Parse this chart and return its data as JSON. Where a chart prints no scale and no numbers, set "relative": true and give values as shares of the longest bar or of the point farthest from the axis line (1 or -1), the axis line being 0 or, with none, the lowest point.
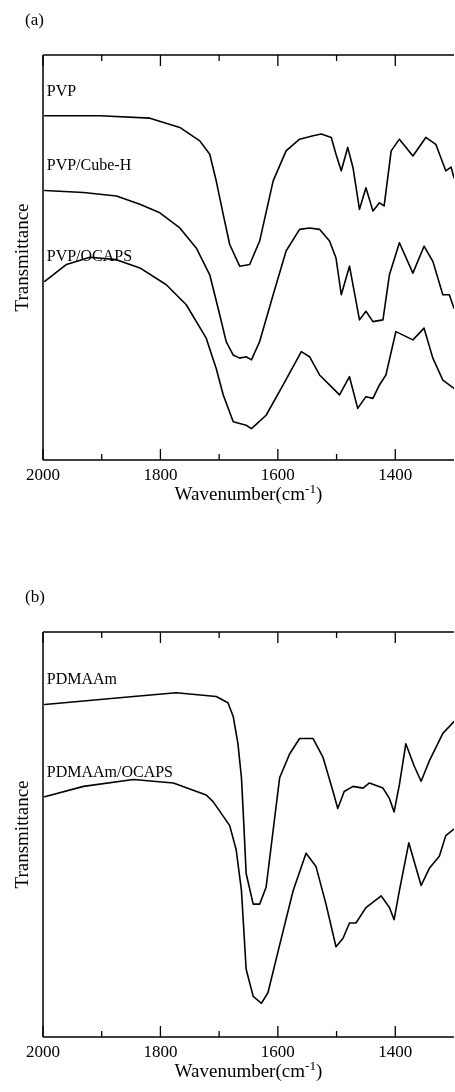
{
  "chart_data": [
    {
      "type": "line",
      "title": "(a)",
      "xlabel": "Wavenumber(cm$^{-1}$)",
      "ylabel": "Transmittance",
      "relative": true,
      "xlim": [
        2000,
        1300
      ],
      "xticks": [
        2000,
        {
          "value": 1900,
          "label": null
        },
        1800,
        {
          "value": 1700,
          "label": null
        },
        1600,
        {
          "value": 1500,
          "label": null
        },
        1400
      ],
      "series": [
        {
          "name": "PVP",
          "color": "#000000",
          "x": [
            1997,
            1903,
            1818,
            1767,
            1733,
            1716,
            1705,
            1693,
            1682,
            1665,
            1648,
            1631,
            1608,
            1586,
            1563,
            1540,
            1526,
            1509,
            1501,
            1492,
            1481,
            1472,
            1461,
            1450,
            1438,
            1427,
            1419,
            1407,
            1393,
            1370,
            1348,
            1331,
            1314,
            1305,
            1300
          ],
          "values": [
            1.0,
            1.0,
            0.993,
            0.966,
            0.927,
            0.888,
            0.811,
            0.713,
            0.626,
            0.563,
            0.568,
            0.636,
            0.811,
            0.898,
            0.932,
            0.942,
            0.947,
            0.937,
            0.888,
            0.84,
            0.908,
            0.849,
            0.728,
            0.791,
            0.723,
            0.747,
            0.738,
            0.898,
            0.932,
            0.883,
            0.937,
            0.917,
            0.84,
            0.851,
            0.82
          ]
        },
        {
          "name": "PVP/Cube-H",
          "color": "#000000",
          "x": [
            1997,
            1931,
            1875,
            1835,
            1801,
            1767,
            1739,
            1716,
            1699,
            1688,
            1676,
            1665,
            1654,
            1645,
            1631,
            1608,
            1586,
            1563,
            1546,
            1529,
            1512,
            1501,
            1492,
            1478,
            1470,
            1461,
            1450,
            1438,
            1421,
            1410,
            1393,
            1370,
            1351,
            1336,
            1319,
            1308,
            1300
          ],
          "values": [
            0.783,
            0.777,
            0.767,
            0.743,
            0.718,
            0.674,
            0.616,
            0.538,
            0.422,
            0.344,
            0.305,
            0.296,
            0.3,
            0.291,
            0.344,
            0.48,
            0.607,
            0.67,
            0.674,
            0.67,
            0.636,
            0.587,
            0.48,
            0.563,
            0.49,
            0.407,
            0.432,
            0.402,
            0.407,
            0.538,
            0.631,
            0.543,
            0.621,
            0.577,
            0.48,
            0.48,
            0.441
          ]
        },
        {
          "name": "PVP/OCAPS",
          "color": "#000000",
          "x": [
            1997,
            1960,
            1920,
            1875,
            1835,
            1790,
            1756,
            1722,
            1705,
            1693,
            1676,
            1654,
            1645,
            1620,
            1591,
            1560,
            1546,
            1529,
            1506,
            1495,
            1478,
            1464,
            1450,
            1438,
            1427,
            1416,
            1399,
            1370,
            1351,
            1336,
            1319,
            1300
          ],
          "values": [
            0.519,
            0.568,
            0.589,
            0.582,
            0.558,
            0.509,
            0.451,
            0.354,
            0.266,
            0.189,
            0.111,
            0.101,
            0.091,
            0.13,
            0.218,
            0.315,
            0.3,
            0.247,
            0.208,
            0.189,
            0.242,
            0.15,
            0.184,
            0.179,
            0.218,
            0.247,
            0.373,
            0.349,
            0.383,
            0.296,
            0.232,
            0.208
          ]
        }
      ]
    },
    {
      "type": "line",
      "title": "(b)",
      "xlabel": "Wavenumber(cm$^{-1}$)",
      "ylabel": "Transmittance",
      "relative": true,
      "xlim": [
        2000,
        1300
      ],
      "xticks": [
        2000,
        {
          "value": 1900,
          "label": null
        },
        1800,
        {
          "value": 1700,
          "label": null
        },
        1600,
        {
          "value": 1500,
          "label": null
        },
        1400
      ],
      "series": [
        {
          "name": "PDMAAm",
          "color": "#000000",
          "x": [
            1997,
            1931,
            1846,
            1773,
            1705,
            1685,
            1676,
            1668,
            1662,
            1659,
            1654,
            1642,
            1631,
            1620,
            1597,
            1580,
            1563,
            1540,
            1523,
            1506,
            1498,
            1487,
            1472,
            1455,
            1444,
            1421,
            1410,
            1402,
            1393,
            1382,
            1368,
            1356,
            1342,
            1319,
            1300
          ],
          "values": [
            0.966,
            0.976,
            0.989,
            1.0,
            0.989,
            0.971,
            0.931,
            0.852,
            0.753,
            0.654,
            0.475,
            0.386,
            0.386,
            0.435,
            0.753,
            0.822,
            0.867,
            0.867,
            0.812,
            0.713,
            0.664,
            0.713,
            0.728,
            0.723,
            0.738,
            0.723,
            0.693,
            0.654,
            0.733,
            0.852,
            0.788,
            0.743,
            0.802,
            0.882,
            0.916
          ]
        },
        {
          "name": "PDMAAm/OCAPS",
          "color": "#000000",
          "x": [
            1997,
            1931,
            1846,
            1778,
            1722,
            1710,
            1682,
            1671,
            1662,
            1654,
            1642,
            1628,
            1617,
            1597,
            1574,
            1552,
            1535,
            1518,
            1501,
            1489,
            1478,
            1467,
            1450,
            1424,
            1410,
            1402,
            1393,
            1377,
            1356,
            1342,
            1325,
            1314,
            1300
          ],
          "values": [
            0.698,
            0.728,
            0.748,
            0.738,
            0.703,
            0.683,
            0.614,
            0.544,
            0.425,
            0.197,
            0.118,
            0.098,
            0.128,
            0.267,
            0.425,
            0.534,
            0.495,
            0.386,
            0.262,
            0.287,
            0.331,
            0.331,
            0.376,
            0.41,
            0.376,
            0.341,
            0.425,
            0.564,
            0.44,
            0.49,
            0.525,
            0.585,
            0.604
          ]
        }
      ]
    }
  ]
}
